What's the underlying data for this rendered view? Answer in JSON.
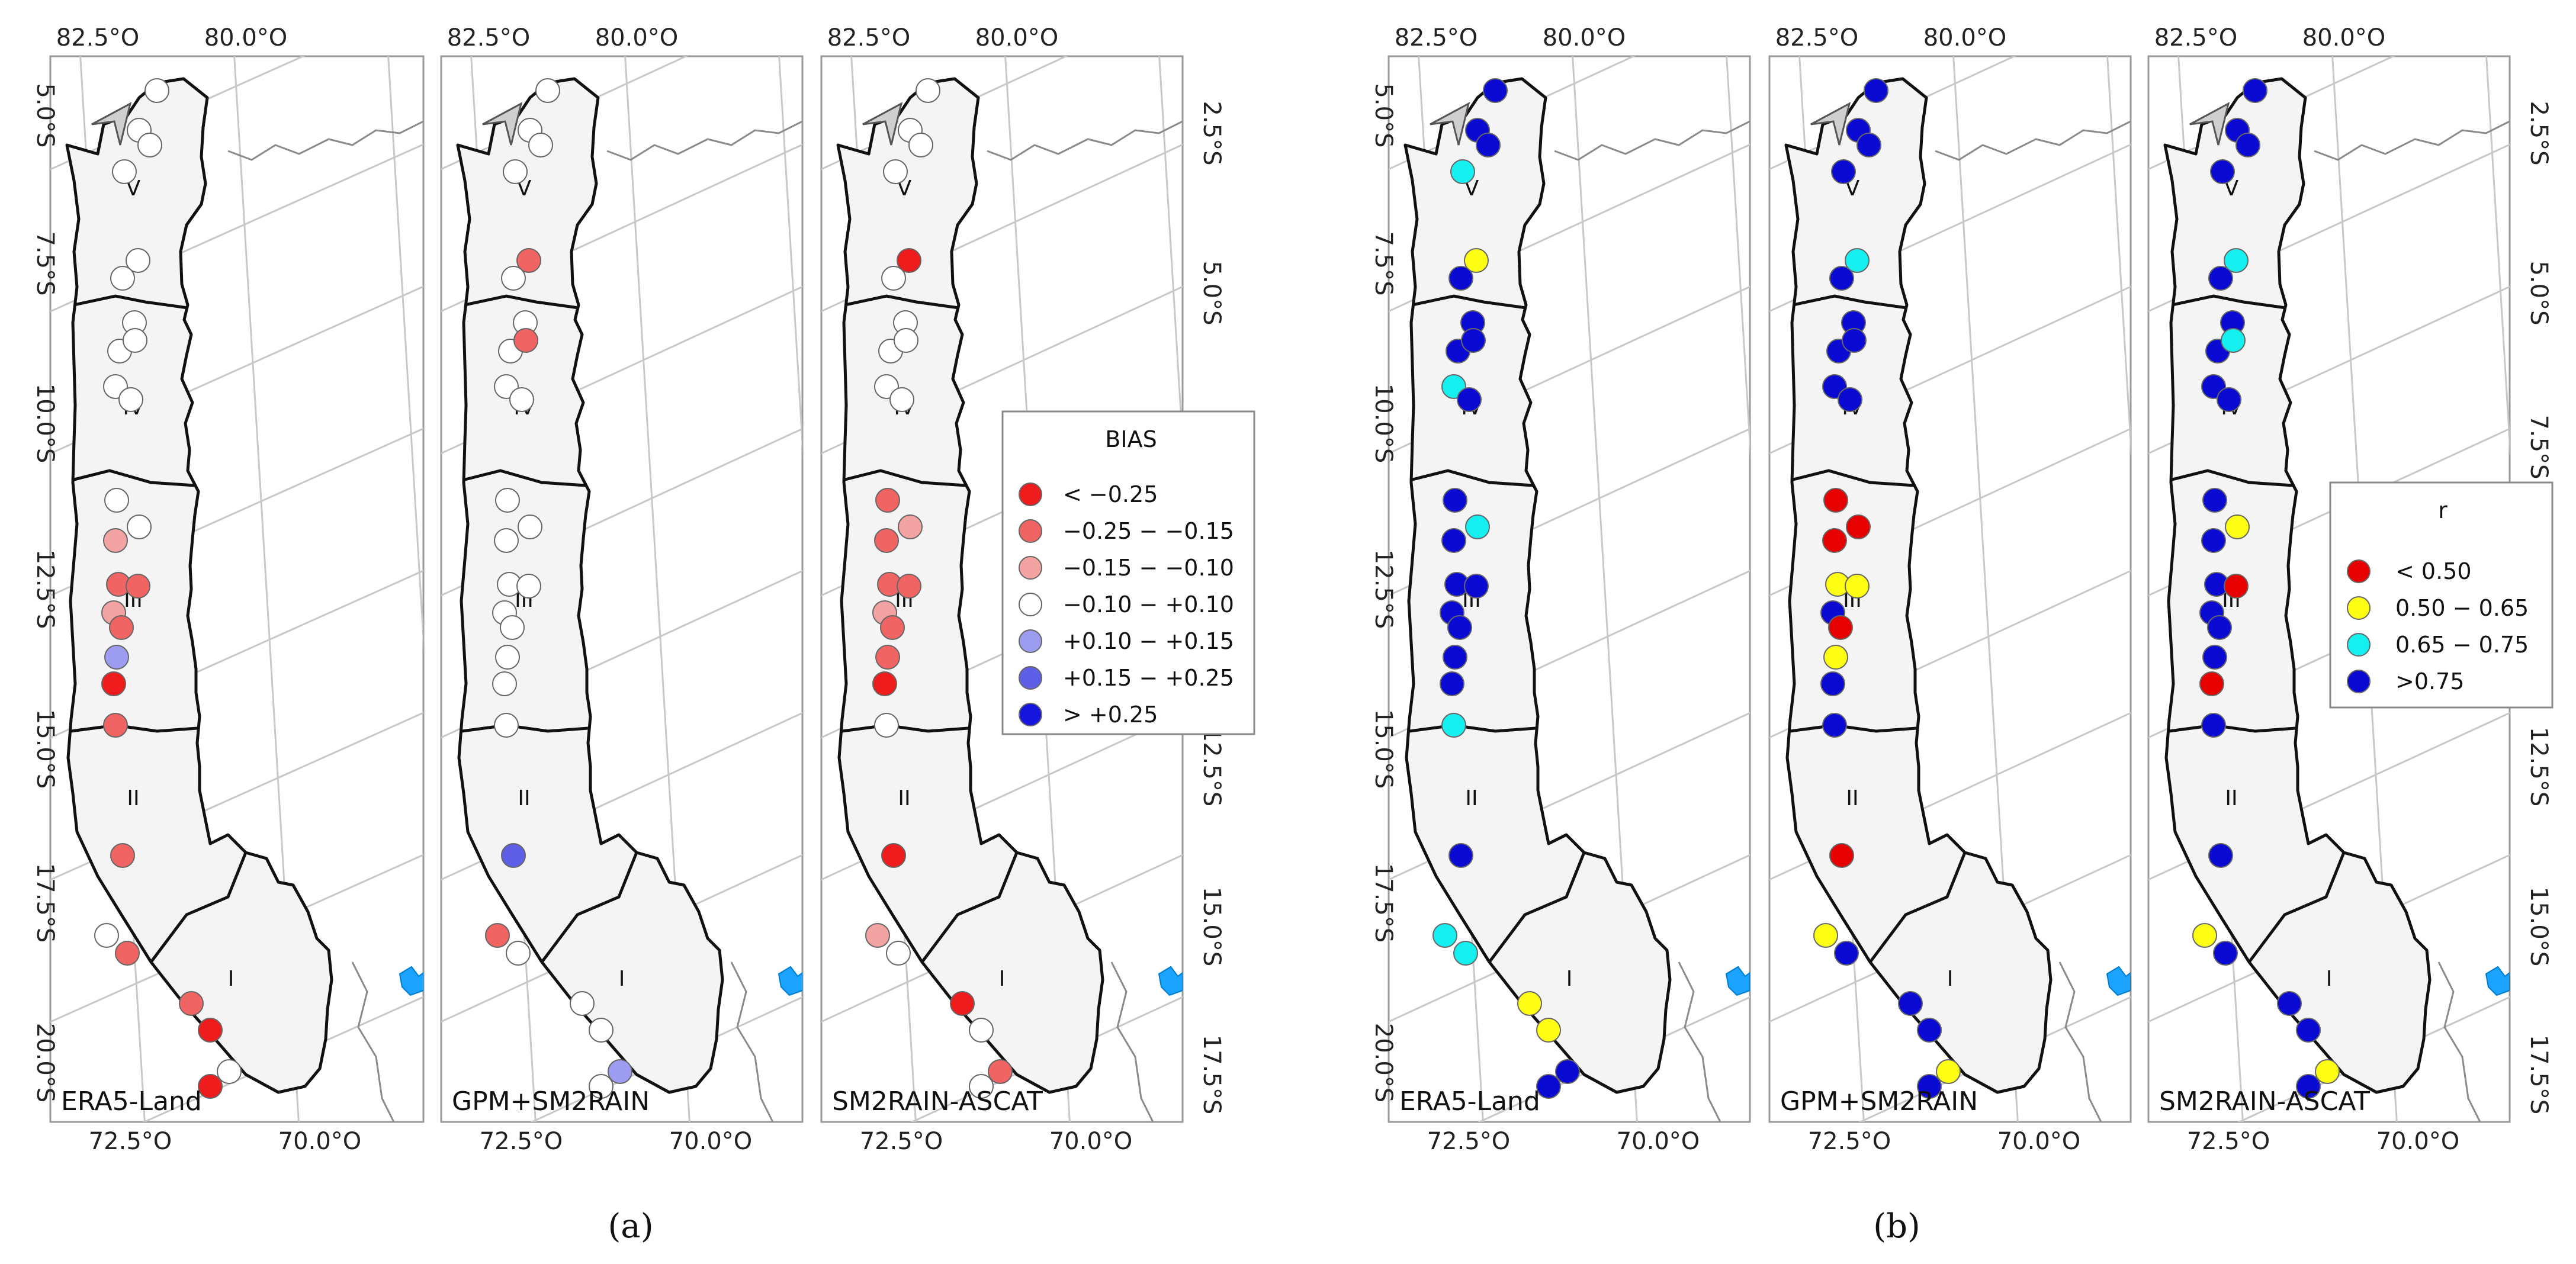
{
  "figure": {
    "captions": [
      "(a)",
      "(b)"
    ]
  },
  "colors": {
    "bias": {
      "lt_m025": "#ee1c1c",
      "m025_m015": "#f16464",
      "m015_m010": "#f4a3a3",
      "m010_p010": "#ffffff",
      "p010_p015": "#9c9cf0",
      "p015_p025": "#5e5ee6",
      "gt_p025": "#1515dd"
    },
    "r": {
      "lt_050": "#e60000",
      "r050_065": "#ffff14",
      "r065_075": "#14f0f0",
      "gt_075": "#0a0ad2"
    }
  },
  "legends": {
    "bias": {
      "title": "BIAS",
      "entries": [
        {
          "key": "lt_m025",
          "label": "< −0.25"
        },
        {
          "key": "m025_m015",
          "label": "−0.25 − −0.15"
        },
        {
          "key": "m015_m010",
          "label": "−0.15 − −0.10"
        },
        {
          "key": "m010_p010",
          "label": "−0.10 − +0.10"
        },
        {
          "key": "p010_p015",
          "label": "+0.10 − +0.15"
        },
        {
          "key": "p015_p025",
          "label": "+0.15 − +0.25"
        },
        {
          "key": "gt_p025",
          "label": "> +0.25"
        }
      ]
    },
    "r": {
      "title": "r",
      "entries": [
        {
          "key": "lt_050",
          "label": "< 0.50"
        },
        {
          "key": "r050_065",
          "label": "0.50 − 0.65"
        },
        {
          "key": "r065_075",
          "label": "0.65 − 0.75"
        },
        {
          "key": "gt_075",
          "label": ">0.75"
        }
      ]
    }
  },
  "labels": {
    "top_ticks": [
      "82.5°O",
      "80.0°O"
    ],
    "bottom_ticks": [
      "72.5°O",
      "70.0°O"
    ],
    "left_ticks": [
      "5.0°S",
      "7.5°S",
      "10.0°S",
      "12.5°S",
      "15.0°S",
      "17.5°S",
      "20.0°S"
    ],
    "right_ticks": [
      "2.5°S",
      "5.0°S",
      "7.5°S",
      "10.0°S",
      "12.5°S",
      "15.0°S",
      "17.5°S"
    ],
    "zones": [
      "V",
      "IV",
      "III",
      "II",
      "I"
    ]
  },
  "panels": [
    {
      "group": "a",
      "dataset": "ERA5-Land",
      "variable": "bias",
      "stations": [
        "m010_p010",
        "m010_p010",
        "m010_p010",
        "m010_p010",
        "m010_p010",
        "m010_p010",
        "m010_p010",
        "m010_p010",
        "m010_p010",
        "m010_p010",
        "m010_p010",
        "m010_p010",
        "m010_p010",
        "m015_m010",
        "m025_m015",
        "m025_m015",
        "m015_m010",
        "m025_m015",
        "p010_p015",
        "lt_m025",
        "m025_m015",
        "m025_m015",
        "m010_p010",
        "m025_m015",
        "m025_m015",
        "lt_m025",
        "m010_p010",
        "lt_m025"
      ]
    },
    {
      "group": "a",
      "dataset": "GPM+SM2RAIN",
      "variable": "bias",
      "stations": [
        "m010_p010",
        "m010_p010",
        "m010_p010",
        "m010_p010",
        "m025_m015",
        "m010_p010",
        "m010_p010",
        "m010_p010",
        "m025_m015",
        "m010_p010",
        "m010_p010",
        "m010_p010",
        "m010_p010",
        "m010_p010",
        "m010_p010",
        "m010_p010",
        "m010_p010",
        "m010_p010",
        "m010_p010",
        "m010_p010",
        "m010_p010",
        "p015_p025",
        "m025_m015",
        "m010_p010",
        "m010_p010",
        "m010_p010",
        "p010_p015",
        "m010_p010"
      ]
    },
    {
      "group": "a",
      "dataset": "SM2RAIN-ASCAT",
      "variable": "bias",
      "stations": [
        "m010_p010",
        "m010_p010",
        "m010_p010",
        "m010_p010",
        "lt_m025",
        "m010_p010",
        "m010_p010",
        "m010_p010",
        "m010_p010",
        "m010_p010",
        "m010_p010",
        "m025_m015",
        "m015_m010",
        "m025_m015",
        "m025_m015",
        "m025_m015",
        "m015_m010",
        "m025_m015",
        "m025_m015",
        "lt_m025",
        "m010_p010",
        "lt_m025",
        "m015_m010",
        "m010_p010",
        "lt_m025",
        "m010_p010",
        "m025_m015",
        "m010_p010"
      ]
    },
    {
      "group": "b",
      "dataset": "ERA5-Land",
      "variable": "r",
      "stations": [
        "gt_075",
        "gt_075",
        "gt_075",
        "r065_075",
        "r050_065",
        "gt_075",
        "gt_075",
        "gt_075",
        "gt_075",
        "r065_075",
        "gt_075",
        "gt_075",
        "r065_075",
        "gt_075",
        "gt_075",
        "gt_075",
        "gt_075",
        "gt_075",
        "gt_075",
        "gt_075",
        "r065_075",
        "gt_075",
        "r065_075",
        "r065_075",
        "r050_065",
        "r050_065",
        "gt_075",
        "gt_075"
      ]
    },
    {
      "group": "b",
      "dataset": "GPM+SM2RAIN",
      "variable": "r",
      "stations": [
        "gt_075",
        "gt_075",
        "gt_075",
        "gt_075",
        "r065_075",
        "gt_075",
        "gt_075",
        "gt_075",
        "gt_075",
        "gt_075",
        "gt_075",
        "lt_050",
        "lt_050",
        "lt_050",
        "r050_065",
        "r050_065",
        "gt_075",
        "lt_050",
        "r050_065",
        "gt_075",
        "gt_075",
        "lt_050",
        "r050_065",
        "gt_075",
        "gt_075",
        "gt_075",
        "r050_065",
        "gt_075"
      ]
    },
    {
      "group": "b",
      "dataset": "SM2RAIN-ASCAT",
      "variable": "r",
      "stations": [
        "gt_075",
        "gt_075",
        "gt_075",
        "gt_075",
        "r065_075",
        "gt_075",
        "gt_075",
        "gt_075",
        "r065_075",
        "gt_075",
        "gt_075",
        "gt_075",
        "r050_065",
        "gt_075",
        "gt_075",
        "lt_050",
        "gt_075",
        "gt_075",
        "gt_075",
        "lt_050",
        "gt_075",
        "gt_075",
        "r050_065",
        "gt_075",
        "gt_075",
        "gt_075",
        "r050_065",
        "gt_075"
      ]
    }
  ]
}
